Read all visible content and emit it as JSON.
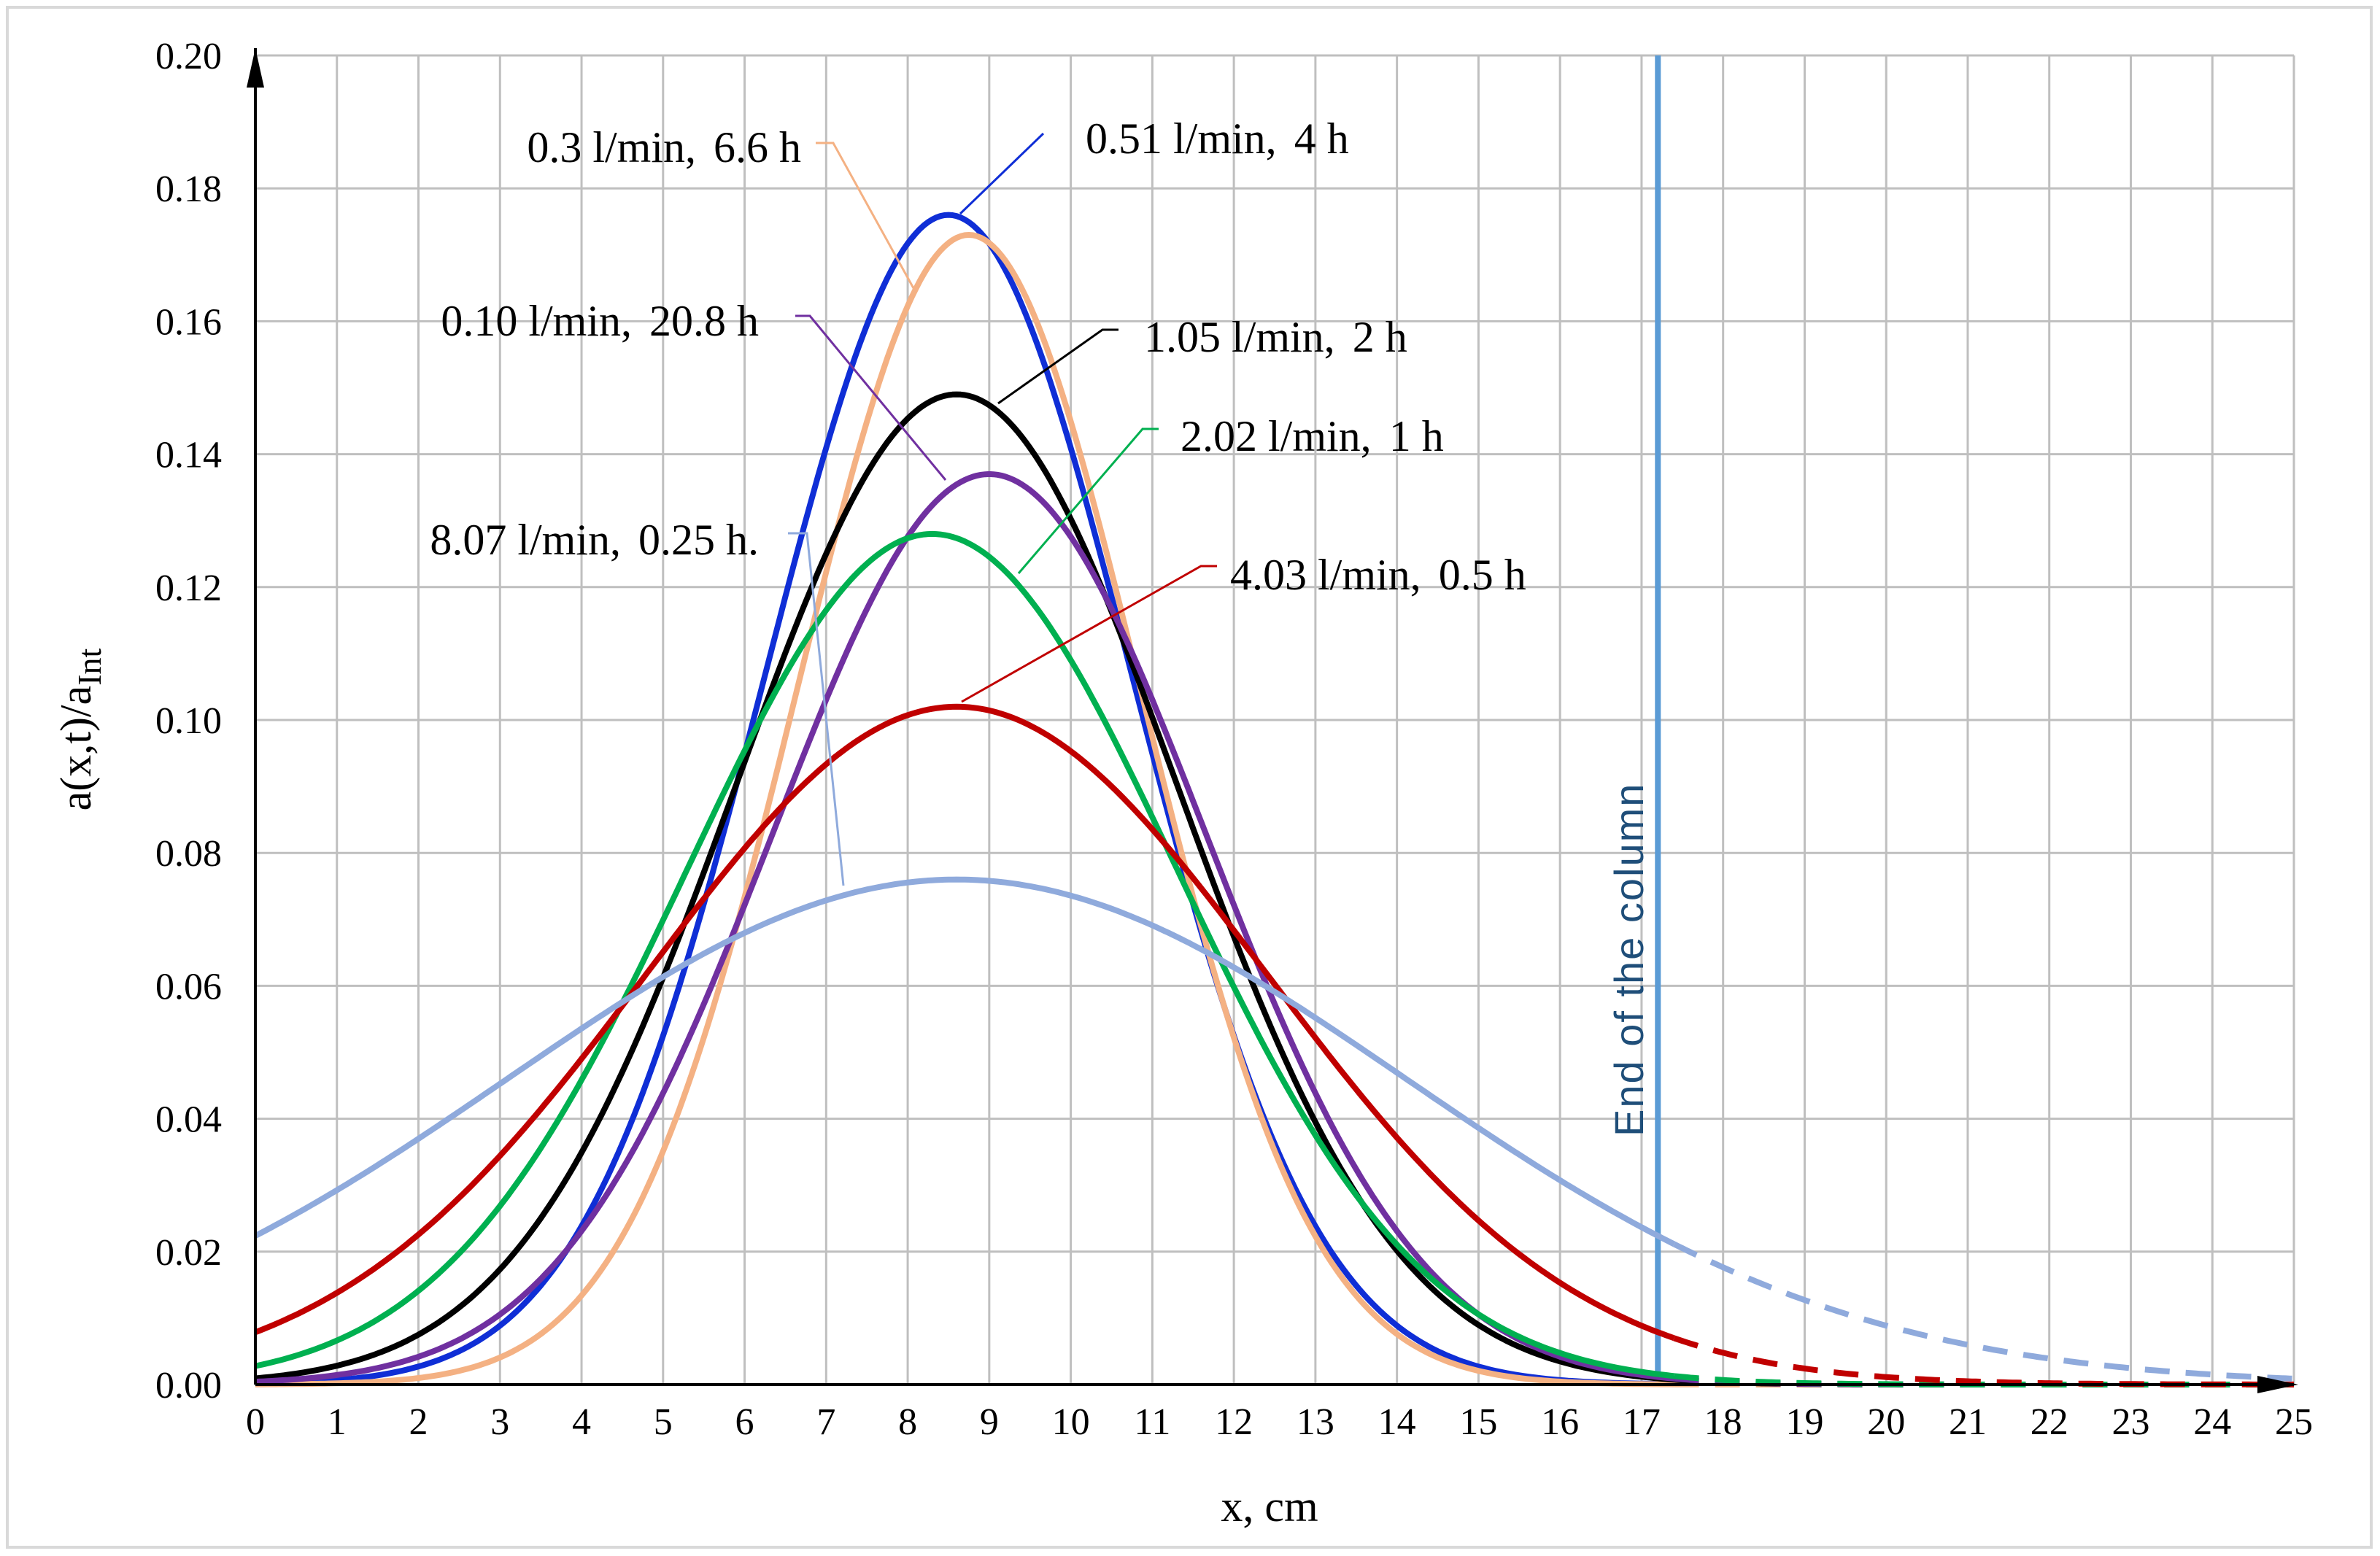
{
  "chart_data": {
    "type": "line",
    "title": "",
    "xlabel": "x, cm",
    "ylabel": "a(x,t)/a_Int",
    "ylabel_main": "a(x,t)/a",
    "ylabel_sub": "Int",
    "xlim": [
      0,
      25
    ],
    "ylim": [
      0,
      0.2
    ],
    "xticks": [
      "0",
      "1",
      "2",
      "3",
      "4",
      "5",
      "6",
      "7",
      "8",
      "9",
      "10",
      "11",
      "12",
      "13",
      "14",
      "15",
      "16",
      "17",
      "18",
      "19",
      "20",
      "21",
      "22",
      "23",
      "24",
      "25"
    ],
    "yticks": [
      "0.00",
      "0.02",
      "0.04",
      "0.06",
      "0.08",
      "0.10",
      "0.12",
      "0.14",
      "0.16",
      "0.18",
      "0.20"
    ],
    "grid": true,
    "end_of_column": {
      "x": 17.2,
      "label": "End of the column",
      "color": "#5b9bd5"
    },
    "series": [
      {
        "name": "0.51 l/min, 4 h",
        "flow": "0.51 l/min,",
        "time": "4 h",
        "color": "#0f2ed6",
        "peak": 0.176,
        "mu": 8.5,
        "sigma": 2.25,
        "extrapolated": false
      },
      {
        "name": "0.3 l/min, 6.6 h",
        "flow": "0.3 l/min,",
        "time": "6.6 h",
        "color": "#f4b183",
        "peak": 0.173,
        "mu": 8.75,
        "sigma": 2.1,
        "extrapolated": true
      },
      {
        "name": "1.05 l/min, 2 h",
        "flow": "1.05 l/min,",
        "time": "2 h",
        "color": "#000000",
        "peak": 0.149,
        "mu": 8.6,
        "sigma": 2.7,
        "extrapolated": true
      },
      {
        "name": "0.10 l/min, 20.8 h",
        "flow": "0.10 l/min,",
        "time": "20.8 h",
        "color": "#7030a0",
        "peak": 0.137,
        "mu": 9.0,
        "sigma": 2.65,
        "extrapolated": true
      },
      {
        "name": "2.02 l/min, 1 h",
        "flow": "2.02 l/min,",
        "time": "1 h",
        "color": "#00b050",
        "peak": 0.128,
        "mu": 8.3,
        "sigma": 3.0,
        "extrapolated": true
      },
      {
        "name": "4.03 l/min, 0.5 h",
        "flow": "4.03 l/min,",
        "time": "0.5 h",
        "color": "#c00000",
        "peak": 0.102,
        "mu": 8.6,
        "sigma": 3.8,
        "extrapolated": true
      },
      {
        "name": "8.07 l/min, 0.25 h.",
        "flow": "8.07 l/min,",
        "time": "0.25 h.",
        "color": "#8faadc",
        "peak": 0.076,
        "mu": 8.6,
        "sigma": 5.5,
        "extrapolated": true
      }
    ]
  }
}
